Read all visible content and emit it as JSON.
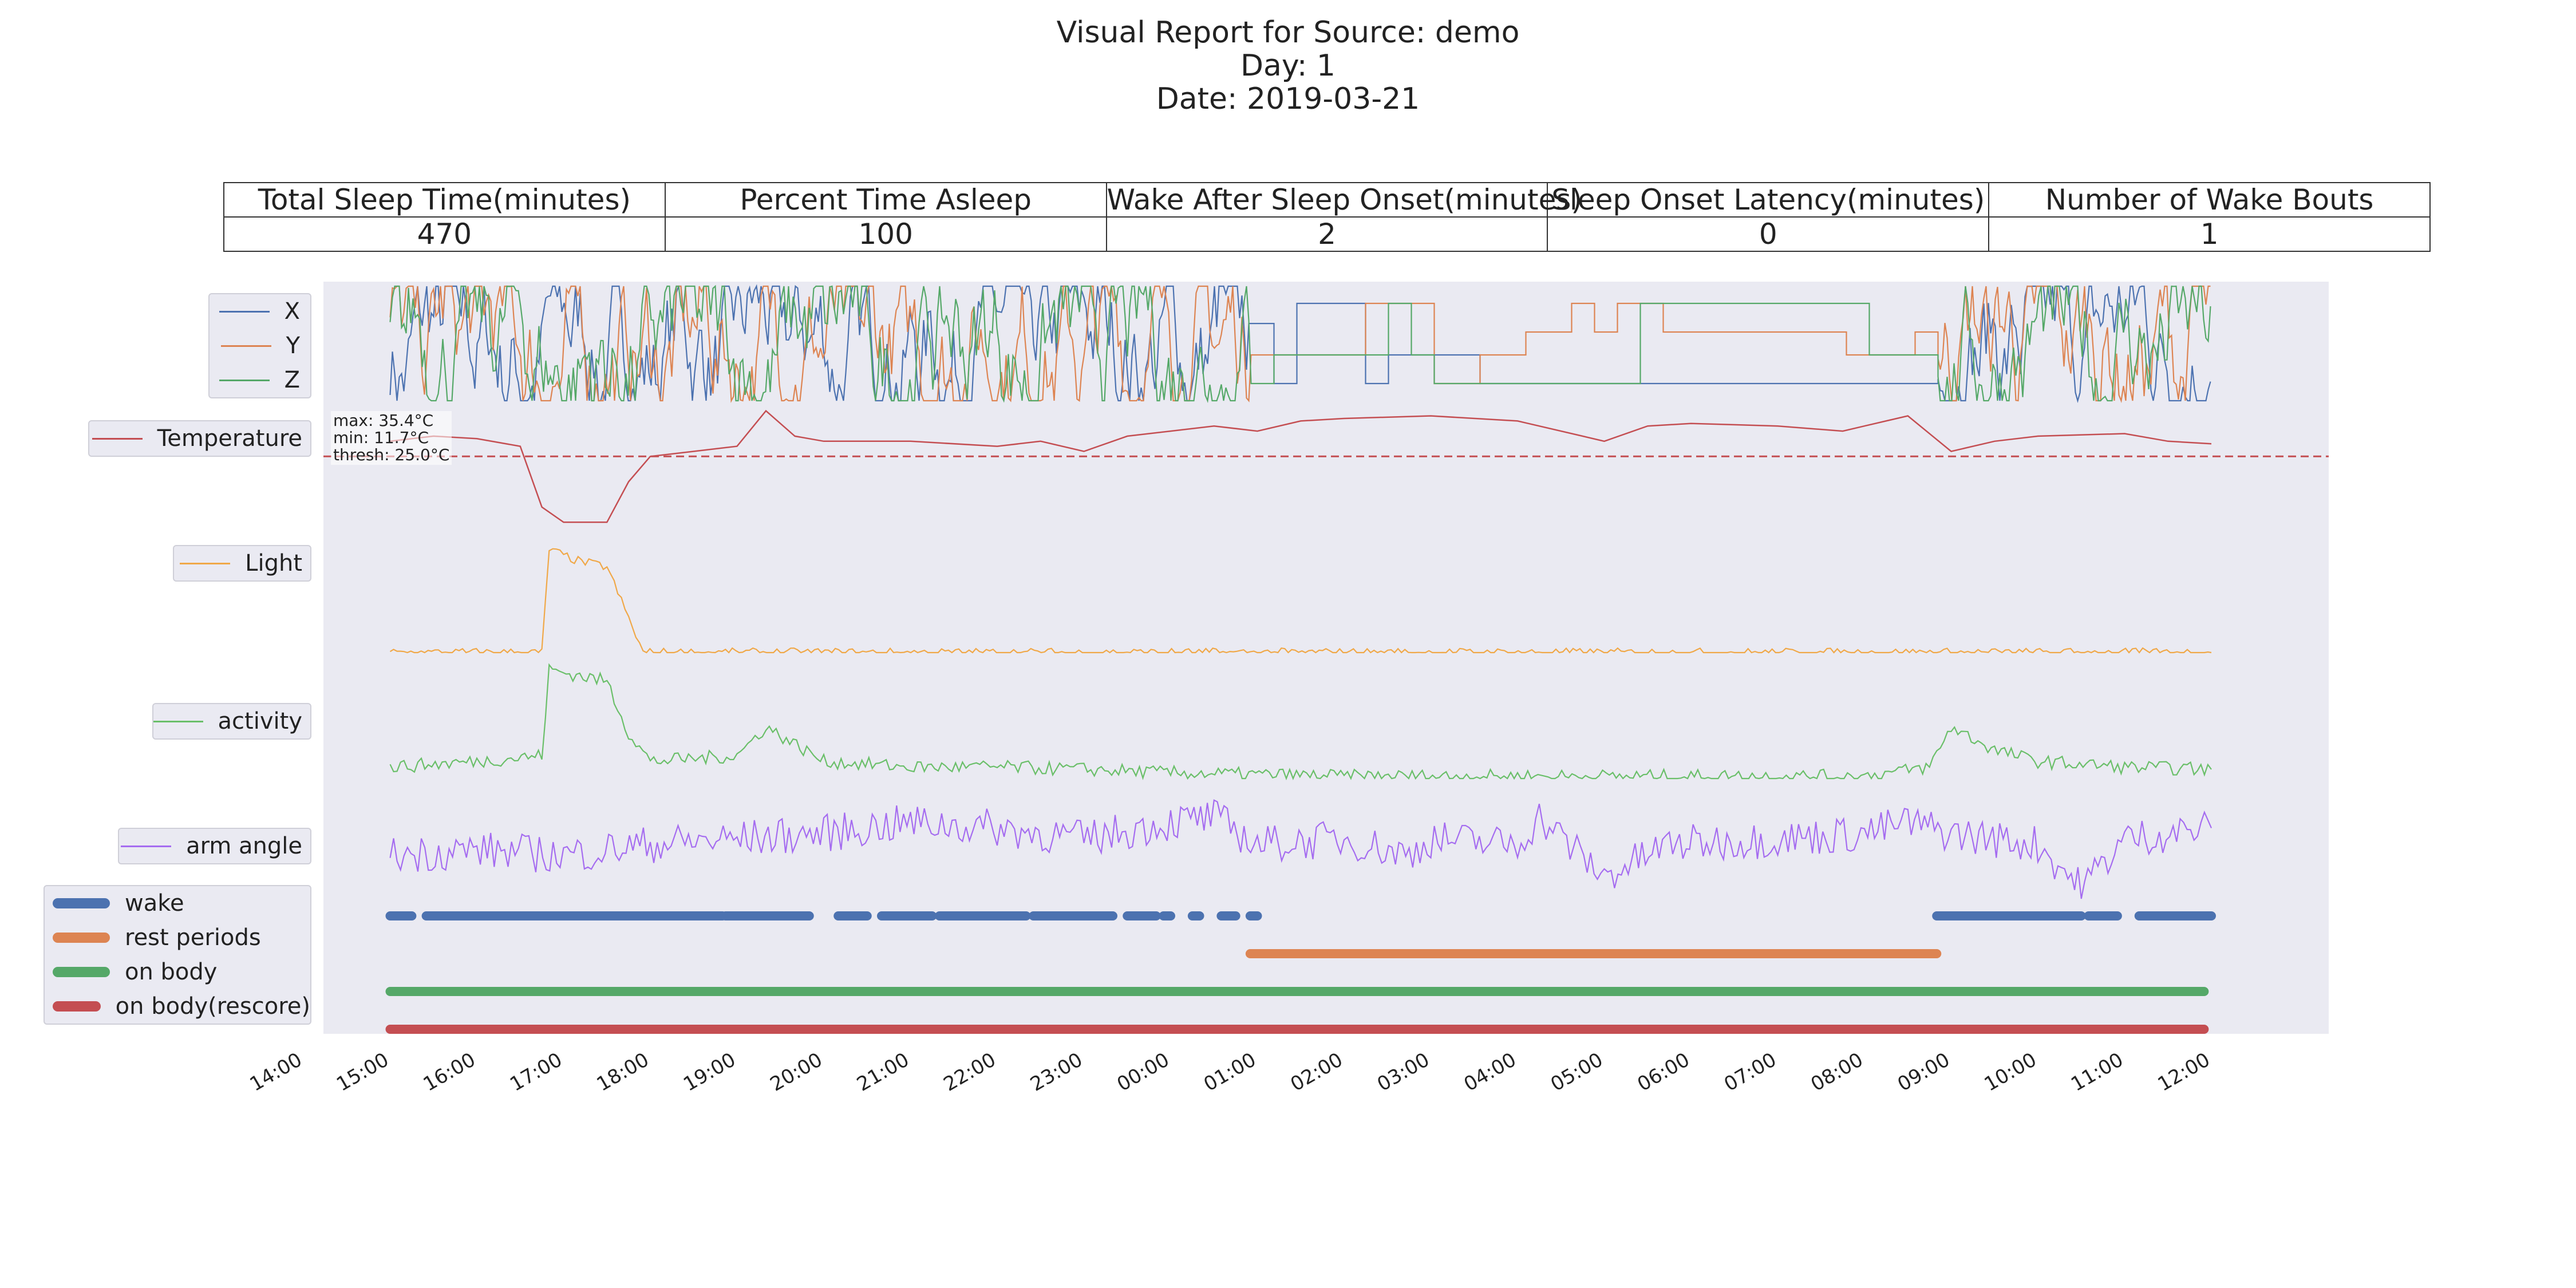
{
  "title": {
    "line1": "Visual Report for Source: demo",
    "line2": "Day: 1",
    "line3": "Date: 2019-03-21"
  },
  "summary_table": {
    "headers": [
      "Total Sleep Time(minutes)",
      "Percent Time Asleep",
      "Wake After Sleep Onset(minutes)",
      "Sleep Onset Latency(minutes)",
      "Number of Wake Bouts"
    ],
    "values": [
      "470",
      "100",
      "2",
      "0",
      "1"
    ]
  },
  "temperature_stats": {
    "max": "max: 35.4°C",
    "min": "min: 11.7°C",
    "thresh": "thresh: 25.0°C"
  },
  "colors": {
    "X": "#4c72b0",
    "Y": "#dd8452",
    "Z": "#55a868",
    "Temperature": "#c44e52",
    "Light": "#f0a848",
    "activity": "#6abf69",
    "arm angle": "#a56cf0",
    "wake": "#4c72b0",
    "rest periods": "#dd8452",
    "on body": "#55a868",
    "on body(rescore)": "#c44e52",
    "panel_bg": "#eaeaf2"
  },
  "chart_data": {
    "type": "line",
    "x_axis": {
      "ticks": [
        "14:00",
        "15:00",
        "16:00",
        "17:00",
        "18:00",
        "19:00",
        "20:00",
        "21:00",
        "22:00",
        "23:00",
        "00:00",
        "01:00",
        "02:00",
        "03:00",
        "04:00",
        "05:00",
        "06:00",
        "07:00",
        "08:00",
        "09:00",
        "10:00",
        "11:00",
        "12:00"
      ],
      "range": [
        "14:00",
        "12:00"
      ]
    },
    "series_legends": {
      "accel": [
        "X",
        "Y",
        "Z"
      ],
      "temperature": "Temperature",
      "light": "Light",
      "activity": "activity",
      "arm_angle": "arm angle"
    },
    "temperature": {
      "threshold_c": 25.0,
      "max_c": 35.4,
      "min_c": 11.7,
      "points": [
        [
          "15:00",
          28
        ],
        [
          "15:30",
          29
        ],
        [
          "16:00",
          28.5
        ],
        [
          "16:30",
          27
        ],
        [
          "16:45",
          15
        ],
        [
          "17:00",
          12
        ],
        [
          "17:30",
          12
        ],
        [
          "17:45",
          20
        ],
        [
          "18:00",
          25
        ],
        [
          "18:30",
          26
        ],
        [
          "19:00",
          27
        ],
        [
          "19:20",
          34
        ],
        [
          "19:40",
          29
        ],
        [
          "20:00",
          28
        ],
        [
          "21:00",
          28
        ],
        [
          "22:00",
          27
        ],
        [
          "22:30",
          28
        ],
        [
          "23:00",
          26
        ],
        [
          "23:30",
          29
        ],
        [
          "00:00",
          30
        ],
        [
          "00:30",
          31
        ],
        [
          "01:00",
          30
        ],
        [
          "01:30",
          32
        ],
        [
          "02:00",
          32.5
        ],
        [
          "03:00",
          33
        ],
        [
          "04:00",
          32
        ],
        [
          "04:45",
          29
        ],
        [
          "05:00",
          28
        ],
        [
          "05:30",
          31
        ],
        [
          "06:00",
          31.5
        ],
        [
          "07:00",
          31
        ],
        [
          "07:45",
          30
        ],
        [
          "08:00",
          31
        ],
        [
          "08:30",
          33
        ],
        [
          "09:00",
          26
        ],
        [
          "09:30",
          28
        ],
        [
          "10:00",
          29
        ],
        [
          "11:00",
          29.5
        ],
        [
          "11:30",
          28
        ],
        [
          "12:00",
          27.5
        ]
      ]
    },
    "light": {
      "points": [
        [
          "15:00",
          0
        ],
        [
          "16:45",
          0
        ],
        [
          "16:50",
          0.9
        ],
        [
          "17:10",
          0.8
        ],
        [
          "17:30",
          0.75
        ],
        [
          "17:45",
          0.3
        ],
        [
          "17:55",
          0
        ],
        [
          "12:00",
          0
        ]
      ]
    },
    "activity": {
      "points": [
        [
          "15:00",
          0.1
        ],
        [
          "16:00",
          0.15
        ],
        [
          "16:45",
          0.2
        ],
        [
          "16:50",
          0.95
        ],
        [
          "17:30",
          0.85
        ],
        [
          "17:45",
          0.4
        ],
        [
          "18:00",
          0.15
        ],
        [
          "19:00",
          0.2
        ],
        [
          "19:20",
          0.45
        ],
        [
          "20:00",
          0.15
        ],
        [
          "21:00",
          0.1
        ],
        [
          "22:00",
          0.1
        ],
        [
          "23:00",
          0.08
        ],
        [
          "00:00",
          0.05
        ],
        [
          "02:00",
          0.02
        ],
        [
          "04:00",
          0.02
        ],
        [
          "06:00",
          0.02
        ],
        [
          "08:00",
          0.02
        ],
        [
          "08:45",
          0.1
        ],
        [
          "09:00",
          0.45
        ],
        [
          "09:30",
          0.25
        ],
        [
          "10:00",
          0.15
        ],
        [
          "11:00",
          0.1
        ],
        [
          "12:00",
          0.08
        ]
      ]
    },
    "arm_angle": {
      "points": [
        [
          "15:00",
          0.4
        ],
        [
          "16:00",
          0.45
        ],
        [
          "17:00",
          0.4
        ],
        [
          "18:00",
          0.5
        ],
        [
          "19:00",
          0.55
        ],
        [
          "20:00",
          0.6
        ],
        [
          "21:00",
          0.7
        ],
        [
          "22:00",
          0.65
        ],
        [
          "23:00",
          0.55
        ],
        [
          "00:00",
          0.7
        ],
        [
          "00:30",
          0.75
        ],
        [
          "01:00",
          0.5
        ],
        [
          "02:00",
          0.55
        ],
        [
          "02:45",
          0.4
        ],
        [
          "03:00",
          0.55
        ],
        [
          "04:00",
          0.5
        ],
        [
          "04:15",
          0.75
        ],
        [
          "05:00",
          0.2
        ],
        [
          "05:45",
          0.5
        ],
        [
          "07:00",
          0.55
        ],
        [
          "08:00",
          0.6
        ],
        [
          "08:30",
          0.7
        ],
        [
          "09:00",
          0.6
        ],
        [
          "10:00",
          0.5
        ],
        [
          "10:30",
          0.1
        ],
        [
          "11:00",
          0.55
        ],
        [
          "12:00",
          0.65
        ]
      ]
    },
    "bands": [
      {
        "name": "wake",
        "intervals": [
          [
            "15:00",
            "15:15"
          ],
          [
            "15:25",
            "18:50"
          ],
          [
            "18:52",
            "19:50"
          ],
          [
            "20:10",
            "20:30"
          ],
          [
            "20:40",
            "21:15"
          ],
          [
            "21:20",
            "22:20"
          ],
          [
            "22:25",
            "23:20"
          ],
          [
            "23:30",
            "23:50"
          ],
          [
            "23:55",
            "00:00"
          ],
          [
            "00:15",
            "00:20"
          ],
          [
            "00:35",
            "00:45"
          ],
          [
            "00:55",
            "01:00"
          ],
          [
            "08:50",
            "10:30"
          ],
          [
            "10:35",
            "10:55"
          ],
          [
            "11:10",
            "12:00"
          ]
        ]
      },
      {
        "name": "rest periods",
        "intervals": [
          [
            "00:55",
            "08:50"
          ]
        ]
      },
      {
        "name": "on body",
        "intervals": [
          [
            "15:00",
            "11:55"
          ]
        ]
      },
      {
        "name": "on body(rescore)",
        "intervals": [
          [
            "15:00",
            "11:55"
          ]
        ]
      }
    ]
  }
}
